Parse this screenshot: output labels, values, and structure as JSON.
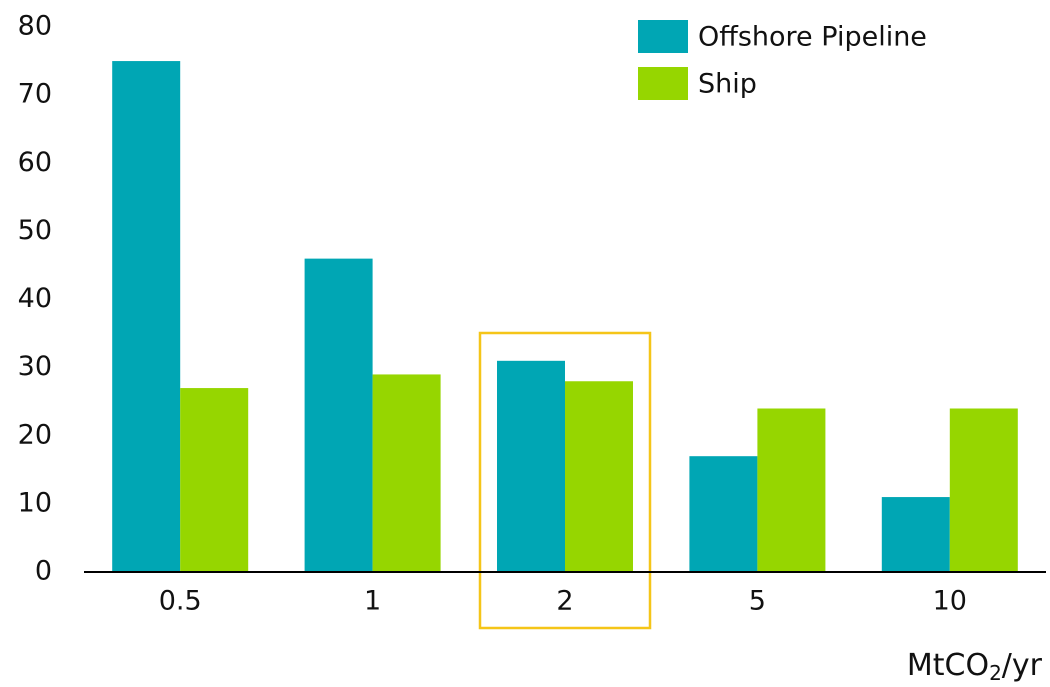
{
  "chart_data": {
    "type": "bar",
    "x_label": "MtCO₂/yr",
    "categories": [
      "0.5",
      "1",
      "2",
      "5",
      "10"
    ],
    "series": [
      {
        "name": "Offshore Pipeline",
        "color": "#00a6b4",
        "values": [
          75,
          46,
          31,
          17,
          11
        ]
      },
      {
        "name": "Ship",
        "color": "#96d600",
        "values": [
          27,
          29,
          28,
          24,
          24
        ]
      }
    ],
    "ylim": [
      0,
      80
    ],
    "yticks": [
      0,
      10,
      20,
      30,
      40,
      50,
      60,
      70,
      80
    ],
    "highlight": "2",
    "highlight_color": "#f5c518",
    "legend": "top-right"
  }
}
